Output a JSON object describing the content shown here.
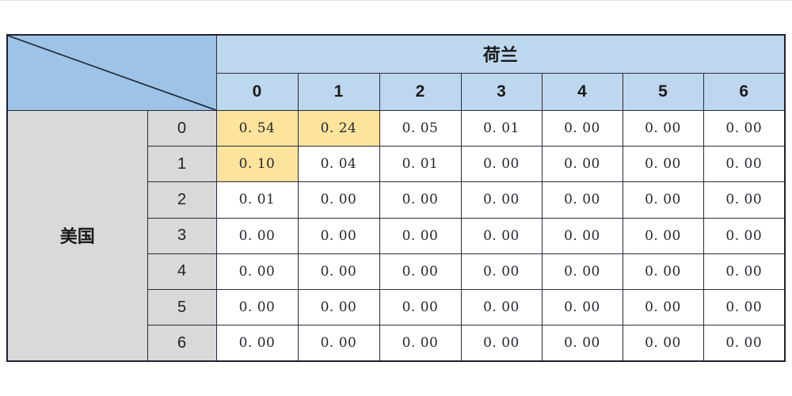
{
  "table": {
    "col_group_label": "荷兰",
    "row_group_label": "美国",
    "col_headers": [
      "0",
      "1",
      "2",
      "3",
      "4",
      "5",
      "6"
    ],
    "rows": [
      {
        "label": "0",
        "cells": [
          "0. 54",
          "0. 24",
          "0. 05",
          "0. 01",
          "0. 00",
          "0. 00",
          "0. 00"
        ]
      },
      {
        "label": "1",
        "cells": [
          "0. 10",
          "0. 04",
          "0. 01",
          "0. 00",
          "0. 00",
          "0. 00",
          "0. 00"
        ]
      },
      {
        "label": "2",
        "cells": [
          "0. 01",
          "0. 00",
          "0. 00",
          "0. 00",
          "0. 00",
          "0. 00",
          "0. 00"
        ]
      },
      {
        "label": "3",
        "cells": [
          "0. 00",
          "0. 00",
          "0. 00",
          "0. 00",
          "0. 00",
          "0. 00",
          "0. 00"
        ]
      },
      {
        "label": "4",
        "cells": [
          "0. 00",
          "0. 00",
          "0. 00",
          "0. 00",
          "0. 00",
          "0. 00",
          "0. 00"
        ]
      },
      {
        "label": "5",
        "cells": [
          "0. 00",
          "0. 00",
          "0. 00",
          "0. 00",
          "0. 00",
          "0. 00",
          "0. 00"
        ]
      },
      {
        "label": "6",
        "cells": [
          "0. 00",
          "0. 00",
          "0. 00",
          "0. 00",
          "0. 00",
          "0. 00",
          "0. 00"
        ]
      }
    ],
    "highlighted_cells": [
      [
        0,
        0
      ],
      [
        0,
        1
      ],
      [
        1,
        0
      ]
    ]
  },
  "colors": {
    "corner_blue": "#9DC3E6",
    "header_blue": "#BDD7EE",
    "row_header_gray": "#D9D9D9",
    "highlight_yellow": "#FCE49C",
    "grid_line": "#2A2C3A"
  },
  "chart_data": {
    "type": "table",
    "title": "",
    "col_group_label": "荷兰",
    "row_group_label": "美国",
    "columns": [
      0,
      1,
      2,
      3,
      4,
      5,
      6
    ],
    "rows": [
      0,
      1,
      2,
      3,
      4,
      5,
      6
    ],
    "matrix": [
      [
        0.54,
        0.24,
        0.05,
        0.01,
        0.0,
        0.0,
        0.0
      ],
      [
        0.1,
        0.04,
        0.01,
        0.0,
        0.0,
        0.0,
        0.0
      ],
      [
        0.01,
        0.0,
        0.0,
        0.0,
        0.0,
        0.0,
        0.0
      ],
      [
        0.0,
        0.0,
        0.0,
        0.0,
        0.0,
        0.0,
        0.0
      ],
      [
        0.0,
        0.0,
        0.0,
        0.0,
        0.0,
        0.0,
        0.0
      ],
      [
        0.0,
        0.0,
        0.0,
        0.0,
        0.0,
        0.0,
        0.0
      ],
      [
        0.0,
        0.0,
        0.0,
        0.0,
        0.0,
        0.0,
        0.0
      ]
    ],
    "highlighted_cells": [
      [
        0,
        0
      ],
      [
        0,
        1
      ],
      [
        1,
        0
      ]
    ],
    "notes": "joint probability matrix, diagonal-split empty corner cell"
  }
}
